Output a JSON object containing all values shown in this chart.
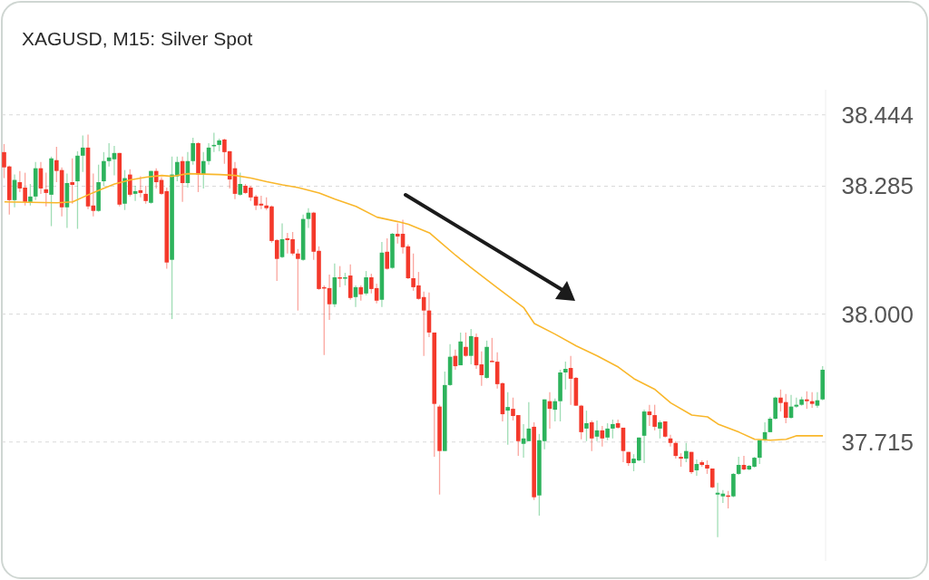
{
  "chart_data": {
    "type": "candlestick",
    "title": "XAGUSD, M15: Silver Spot",
    "categories": [
      null,
      null,
      null,
      null,
      null,
      null,
      null,
      null,
      null,
      null,
      null,
      null,
      null,
      null,
      null,
      null,
      null,
      null,
      null,
      null,
      null,
      null,
      null,
      null,
      null,
      null,
      null,
      null,
      null,
      null,
      null,
      null,
      null,
      null,
      null,
      null,
      null,
      null,
      null,
      null,
      null,
      null,
      null,
      null,
      null,
      null,
      null,
      null,
      null,
      null,
      null,
      null,
      null,
      null,
      null,
      null,
      null,
      null,
      null,
      null,
      null,
      null,
      null,
      null,
      null,
      null,
      null,
      null,
      null,
      null,
      null,
      null,
      null,
      null,
      null,
      null,
      null,
      null,
      null,
      null,
      null,
      null,
      null,
      null,
      null,
      null,
      null,
      null,
      null,
      null,
      null,
      null,
      null,
      null,
      null,
      null,
      null,
      null,
      null,
      null,
      null,
      null,
      null,
      null,
      null,
      null,
      null,
      null,
      null,
      null,
      null,
      null,
      null,
      null,
      null,
      null,
      null,
      null,
      null,
      null,
      null,
      null,
      null,
      null,
      null,
      null,
      null,
      null,
      null,
      null,
      null,
      null,
      null,
      null,
      null,
      null,
      null,
      null,
      null,
      null,
      null,
      null,
      null,
      null,
      null,
      null,
      null,
      null,
      null,
      null,
      null,
      null,
      null,
      null,
      null,
      null,
      null
    ],
    "ohlc": [
      [
        38.361,
        38.379,
        38.303,
        38.327
      ],
      [
        38.329,
        38.331,
        38.222,
        38.254
      ],
      [
        38.254,
        38.311,
        38.238,
        38.299
      ],
      [
        38.294,
        38.319,
        38.272,
        38.28
      ],
      [
        38.282,
        38.315,
        38.242,
        38.25
      ],
      [
        38.25,
        38.29,
        38.242,
        38.262
      ],
      [
        38.262,
        38.339,
        38.254,
        38.325
      ],
      [
        38.325,
        38.339,
        38.268,
        38.28
      ],
      [
        38.278,
        38.315,
        38.24,
        38.27
      ],
      [
        38.266,
        38.351,
        38.196,
        38.347
      ],
      [
        38.343,
        38.373,
        38.294,
        38.319
      ],
      [
        38.321,
        38.327,
        38.218,
        38.238
      ],
      [
        38.238,
        38.313,
        38.192,
        38.292
      ],
      [
        38.294,
        38.347,
        38.246,
        38.288
      ],
      [
        38.296,
        38.363,
        38.19,
        38.353
      ],
      [
        38.353,
        38.398,
        38.317,
        38.371
      ],
      [
        38.371,
        38.4,
        38.234,
        38.24
      ],
      [
        38.242,
        38.313,
        38.218,
        38.23
      ],
      [
        38.23,
        38.333,
        38.228,
        38.294
      ],
      [
        38.296,
        38.361,
        38.286,
        38.341
      ],
      [
        38.341,
        38.381,
        38.329,
        38.349
      ],
      [
        38.345,
        38.375,
        38.309,
        38.359
      ],
      [
        38.359,
        38.359,
        38.24,
        38.244
      ],
      [
        38.246,
        38.321,
        38.232,
        38.303
      ],
      [
        38.311,
        38.323,
        38.262,
        38.266
      ],
      [
        38.268,
        38.286,
        38.252,
        38.274
      ],
      [
        38.276,
        38.307,
        38.26,
        38.27
      ],
      [
        38.268,
        38.286,
        38.246,
        38.252
      ],
      [
        38.248,
        38.319,
        38.246,
        38.319
      ],
      [
        38.319,
        38.325,
        38.28,
        38.294
      ],
      [
        38.299,
        38.305,
        38.266,
        38.268
      ],
      [
        38.274,
        38.282,
        38.101,
        38.115
      ],
      [
        38.121,
        38.351,
        37.989,
        38.311
      ],
      [
        38.307,
        38.351,
        38.296,
        38.339
      ],
      [
        38.341,
        38.351,
        38.25,
        38.292
      ],
      [
        38.292,
        38.361,
        38.282,
        38.341
      ],
      [
        38.341,
        38.393,
        38.333,
        38.381
      ],
      [
        38.381,
        38.383,
        38.272,
        38.311
      ],
      [
        38.311,
        38.361,
        38.28,
        38.341
      ],
      [
        38.341,
        38.381,
        38.333,
        38.371
      ],
      [
        38.375,
        38.404,
        38.361,
        38.377
      ],
      [
        38.377,
        38.391,
        38.363,
        38.387
      ],
      [
        38.389,
        38.391,
        38.335,
        38.361
      ],
      [
        38.363,
        38.363,
        38.28,
        38.3
      ],
      [
        38.325,
        38.339,
        38.256,
        38.268
      ],
      [
        38.266,
        38.315,
        38.264,
        38.29
      ],
      [
        38.286,
        38.29,
        38.268,
        38.27
      ],
      [
        38.282,
        38.286,
        38.252,
        38.26
      ],
      [
        38.262,
        38.266,
        38.232,
        38.242
      ],
      [
        38.246,
        38.264,
        38.234,
        38.242
      ],
      [
        38.242,
        38.26,
        38.232,
        38.236
      ],
      [
        38.24,
        38.242,
        38.159,
        38.163
      ],
      [
        38.165,
        38.167,
        38.074,
        38.123
      ],
      [
        38.127,
        38.202,
        38.125,
        38.167
      ],
      [
        38.169,
        38.181,
        38.135,
        38.165
      ],
      [
        38.167,
        38.183,
        38.131,
        38.135
      ],
      [
        38.135,
        38.145,
        38.008,
        38.123
      ],
      [
        38.121,
        38.222,
        38.119,
        38.212
      ],
      [
        38.212,
        38.236,
        38.192,
        38.226
      ],
      [
        38.226,
        38.228,
        38.121,
        38.139
      ],
      [
        38.141,
        38.151,
        38.054,
        38.056
      ],
      [
        38.06,
        38.064,
        37.909,
        38.058
      ],
      [
        38.058,
        38.088,
        37.987,
        38.022
      ],
      [
        38.022,
        38.113,
        38.016,
        38.082
      ],
      [
        38.082,
        38.107,
        38.06,
        38.08
      ],
      [
        38.08,
        38.092,
        38.064,
        38.082
      ],
      [
        38.086,
        38.111,
        38.032,
        38.036
      ],
      [
        38.038,
        38.064,
        38.016,
        38.06
      ],
      [
        38.06,
        38.064,
        38.03,
        38.044
      ],
      [
        38.046,
        38.096,
        38.042,
        38.082
      ],
      [
        38.082,
        38.09,
        38.046,
        38.056
      ],
      [
        38.058,
        38.068,
        38.024,
        38.03
      ],
      [
        38.032,
        38.161,
        38.016,
        38.137
      ],
      [
        38.139,
        38.169,
        38.099,
        38.101
      ],
      [
        38.103,
        38.181,
        38.101,
        38.179
      ],
      [
        38.179,
        38.202,
        38.157,
        38.173
      ],
      [
        38.179,
        38.21,
        38.135,
        38.149
      ],
      [
        38.151,
        38.155,
        38.078,
        38.08
      ],
      [
        38.08,
        38.135,
        38.052,
        38.06
      ],
      [
        38.064,
        38.094,
        38.032,
        38.034
      ],
      [
        38.038,
        38.05,
        37.907,
        38.008
      ],
      [
        38.008,
        38.048,
        37.949,
        37.959
      ],
      [
        37.959,
        37.959,
        37.682,
        37.8
      ],
      [
        37.794,
        37.798,
        37.598,
        37.695
      ],
      [
        37.695,
        37.872,
        37.695,
        37.842
      ],
      [
        37.842,
        37.933,
        37.84,
        37.905
      ],
      [
        37.907,
        37.921,
        37.876,
        37.884
      ],
      [
        37.886,
        37.959,
        37.886,
        37.939
      ],
      [
        37.927,
        37.959,
        37.905,
        37.907
      ],
      [
        37.907,
        37.967,
        37.888,
        37.951
      ],
      [
        37.949,
        37.957,
        37.878,
        37.886
      ],
      [
        37.888,
        37.917,
        37.84,
        37.864
      ],
      [
        37.858,
        37.941,
        37.856,
        37.927
      ],
      [
        37.896,
        37.947,
        37.894,
        37.894
      ],
      [
        37.894,
        37.915,
        37.834,
        37.844
      ],
      [
        37.846,
        37.848,
        37.761,
        37.777
      ],
      [
        37.785,
        37.826,
        37.709,
        37.793
      ],
      [
        37.789,
        37.814,
        37.763,
        37.773
      ],
      [
        37.775,
        37.775,
        37.684,
        37.717
      ],
      [
        37.711,
        37.755,
        37.68,
        37.723
      ],
      [
        37.717,
        37.804,
        37.717,
        37.745
      ],
      [
        37.749,
        37.759,
        37.586,
        37.592
      ],
      [
        37.596,
        37.733,
        37.551,
        37.719
      ],
      [
        37.717,
        37.81,
        37.699,
        37.81
      ],
      [
        37.806,
        37.826,
        37.745,
        37.789
      ],
      [
        37.787,
        37.812,
        37.761,
        37.806
      ],
      [
        37.806,
        37.876,
        37.761,
        37.87
      ],
      [
        37.87,
        37.894,
        37.832,
        37.878
      ],
      [
        37.88,
        37.907,
        37.798,
        37.856
      ],
      [
        37.858,
        37.86,
        37.796,
        37.796
      ],
      [
        37.796,
        37.798,
        37.721,
        37.737
      ],
      [
        37.745,
        37.785,
        37.717,
        37.757
      ],
      [
        37.759,
        37.763,
        37.695,
        37.723
      ],
      [
        37.727,
        37.763,
        37.717,
        37.741
      ],
      [
        37.741,
        37.751,
        37.705,
        37.723
      ],
      [
        37.725,
        37.757,
        37.719,
        37.745
      ],
      [
        37.745,
        37.765,
        37.723,
        37.755
      ],
      [
        37.757,
        37.765,
        37.745,
        37.747
      ],
      [
        37.747,
        37.747,
        37.67,
        37.695
      ],
      [
        37.693,
        37.693,
        37.662,
        37.668
      ],
      [
        37.668,
        37.688,
        37.65,
        37.678
      ],
      [
        37.674,
        37.725,
        37.672,
        37.725
      ],
      [
        37.729,
        37.787,
        37.668,
        37.783
      ],
      [
        37.783,
        37.798,
        37.751,
        37.775
      ],
      [
        37.775,
        37.798,
        37.741,
        37.749
      ],
      [
        37.745,
        37.763,
        37.723,
        37.759
      ],
      [
        37.761,
        37.761,
        37.725,
        37.727
      ],
      [
        37.723,
        37.731,
        37.705,
        37.713
      ],
      [
        37.713,
        37.717,
        37.678,
        37.684
      ],
      [
        37.682,
        37.69,
        37.66,
        37.678
      ],
      [
        37.678,
        37.713,
        37.67,
        37.695
      ],
      [
        37.693,
        37.693,
        37.644,
        37.648
      ],
      [
        37.652,
        37.676,
        37.64,
        37.666
      ],
      [
        37.67,
        37.674,
        37.66,
        37.664
      ],
      [
        37.664,
        37.674,
        37.644,
        37.656
      ],
      [
        37.656,
        37.656,
        37.612,
        37.614
      ],
      [
        37.598,
        37.624,
        37.503,
        37.602
      ],
      [
        37.594,
        37.608,
        37.579,
        37.6
      ],
      [
        37.596,
        37.606,
        37.567,
        37.594
      ],
      [
        37.594,
        37.646,
        37.592,
        37.644
      ],
      [
        37.644,
        37.682,
        37.642,
        37.664
      ],
      [
        37.664,
        37.684,
        37.652,
        37.654
      ],
      [
        37.654,
        37.664,
        37.652,
        37.662
      ],
      [
        37.66,
        37.682,
        37.658,
        37.68
      ],
      [
        37.68,
        37.719,
        37.666,
        37.719
      ],
      [
        37.719,
        37.759,
        37.717,
        37.737
      ],
      [
        37.737,
        37.771,
        37.737,
        37.767
      ],
      [
        37.767,
        37.816,
        37.765,
        37.814
      ],
      [
        37.814,
        37.832,
        37.783,
        37.802
      ],
      [
        37.804,
        37.822,
        37.757,
        37.769
      ],
      [
        37.769,
        37.82,
        37.767,
        37.794
      ],
      [
        37.794,
        37.814,
        37.791,
        37.798
      ],
      [
        37.798,
        37.816,
        37.796,
        37.81
      ],
      [
        37.81,
        37.828,
        37.789,
        37.806
      ],
      [
        37.806,
        37.826,
        37.791,
        37.8
      ],
      [
        37.796,
        37.826,
        37.791,
        37.808
      ],
      [
        37.81,
        37.884,
        37.808,
        37.876
      ]
    ],
    "colors": [
      "#f4392b",
      "#f4392b",
      "#2db35c",
      "#f4392b",
      "#f4392b",
      "#2db35c",
      "#2db35c",
      "#f4392b",
      "#f4392b",
      "#2db35c",
      "#f4392b",
      "#f4392b",
      "#2db35c",
      "#f4392b",
      "#2db35c",
      "#2db35c",
      "#f4392b",
      "#f4392b",
      "#2db35c",
      "#2db35c",
      "#2db35c",
      "#2db35c",
      "#f4392b",
      "#2db35c",
      "#f4392b",
      "#2db35c",
      "#f4392b",
      "#f4392b",
      "#2db35c",
      "#f4392b",
      "#f4392b",
      "#f4392b",
      "#2db35c",
      "#2db35c",
      "#f4392b",
      "#2db35c",
      "#2db35c",
      "#f4392b",
      "#2db35c",
      "#2db35c",
      "#2db35c",
      "#2db35c",
      "#f4392b",
      "#f4392b",
      "#f4392b",
      "#2db35c",
      "#f4392b",
      "#f4392b",
      "#f4392b",
      "#f4392b",
      "#f4392b",
      "#f4392b",
      "#f4392b",
      "#2db35c",
      "#f4392b",
      "#f4392b",
      "#f4392b",
      "#2db35c",
      "#2db35c",
      "#f4392b",
      "#f4392b",
      "#f4392b",
      "#f4392b",
      "#2db35c",
      "#f4392b",
      "#2db35c",
      "#f4392b",
      "#2db35c",
      "#f4392b",
      "#2db35c",
      "#f4392b",
      "#f4392b",
      "#2db35c",
      "#f4392b",
      "#2db35c",
      "#f4392b",
      "#f4392b",
      "#f4392b",
      "#f4392b",
      "#f4392b",
      "#f4392b",
      "#f4392b",
      "#f4392b",
      "#f4392b",
      "#2db35c",
      "#2db35c",
      "#f4392b",
      "#2db35c",
      "#f4392b",
      "#2db35c",
      "#f4392b",
      "#f4392b",
      "#2db35c",
      "#f4392b",
      "#f4392b",
      "#f4392b",
      "#2db35c",
      "#f4392b",
      "#f4392b",
      "#2db35c",
      "#2db35c",
      "#f4392b",
      "#2db35c",
      "#2db35c",
      "#f4392b",
      "#2db35c",
      "#2db35c",
      "#2db35c",
      "#f4392b",
      "#f4392b",
      "#f4392b",
      "#2db35c",
      "#f4392b",
      "#2db35c",
      "#f4392b",
      "#2db35c",
      "#2db35c",
      "#f4392b",
      "#f4392b",
      "#f4392b",
      "#2db35c",
      "#2db35c",
      "#2db35c",
      "#f4392b",
      "#f4392b",
      "#2db35c",
      "#f4392b",
      "#f4392b",
      "#f4392b",
      "#f4392b",
      "#2db35c",
      "#f4392b",
      "#2db35c",
      "#f4392b",
      "#f4392b",
      "#f4392b",
      "#2db35c",
      "#2db35c",
      "#f4392b",
      "#2db35c",
      "#2db35c",
      "#f4392b",
      "#2db35c",
      "#2db35c",
      "#2db35c",
      "#2db35c",
      "#2db35c",
      "#2db35c",
      "#f4392b",
      "#f4392b",
      "#2db35c",
      "#2db35c",
      "#2db35c",
      "#f4392b",
      "#f4392b",
      "#2db35c",
      "#2db35c"
    ],
    "series": [
      {
        "type": "line",
        "color": "#f9b72b",
        "values": [
          38.25,
          null,
          null,
          null,
          null,
          null,
          null,
          null,
          null,
          null,
          38.248,
          null,
          null,
          38.25,
          null,
          null,
          38.266,
          null,
          38.276,
          null,
          null,
          38.29,
          null,
          null,
          38.299,
          null,
          null,
          38.305,
          null,
          null,
          38.309,
          null,
          38.307,
          null,
          null,
          38.313,
          null,
          null,
          null,
          null,
          null,
          38.311,
          null,
          null,
          38.309,
          null,
          null,
          38.303,
          null,
          null,
          38.295,
          null,
          null,
          38.288,
          null,
          null,
          38.282,
          null,
          null,
          null,
          38.27,
          null,
          null,
          38.256,
          null,
          null,
          null,
          38.24,
          null,
          null,
          null,
          38.216,
          null,
          null,
          null,
          38.206,
          null,
          38.2,
          null,
          null,
          null,
          38.181,
          null,
          38.161,
          null,
          null,
          38.131,
          null,
          null,
          38.103,
          null,
          null,
          null,
          null,
          38.058,
          null,
          null,
          null,
          null,
          38.014,
          null,
          37.979,
          null,
          null,
          null,
          37.955,
          null,
          null,
          null,
          37.929,
          null,
          null,
          null,
          37.907,
          null,
          null,
          null,
          37.882,
          null,
          null,
          37.856,
          null,
          null,
          null,
          37.832,
          null,
          null,
          37.802,
          null,
          null,
          null,
          37.775,
          null,
          null,
          37.771,
          null,
          37.755,
          null,
          null,
          null,
          37.737,
          null,
          null,
          37.721,
          null,
          null,
          37.719,
          null,
          null,
          37.721,
          null,
          37.729,
          null,
          null,
          null,
          null,
          37.729
        ]
      }
    ],
    "ylim": [
      37.45,
      38.5
    ],
    "yticks": [
      38.444,
      38.285,
      {
        "value": 38,
        "label": "38.000"
      },
      37.715
    ],
    "grid": "y",
    "tick_labels": "y"
  }
}
